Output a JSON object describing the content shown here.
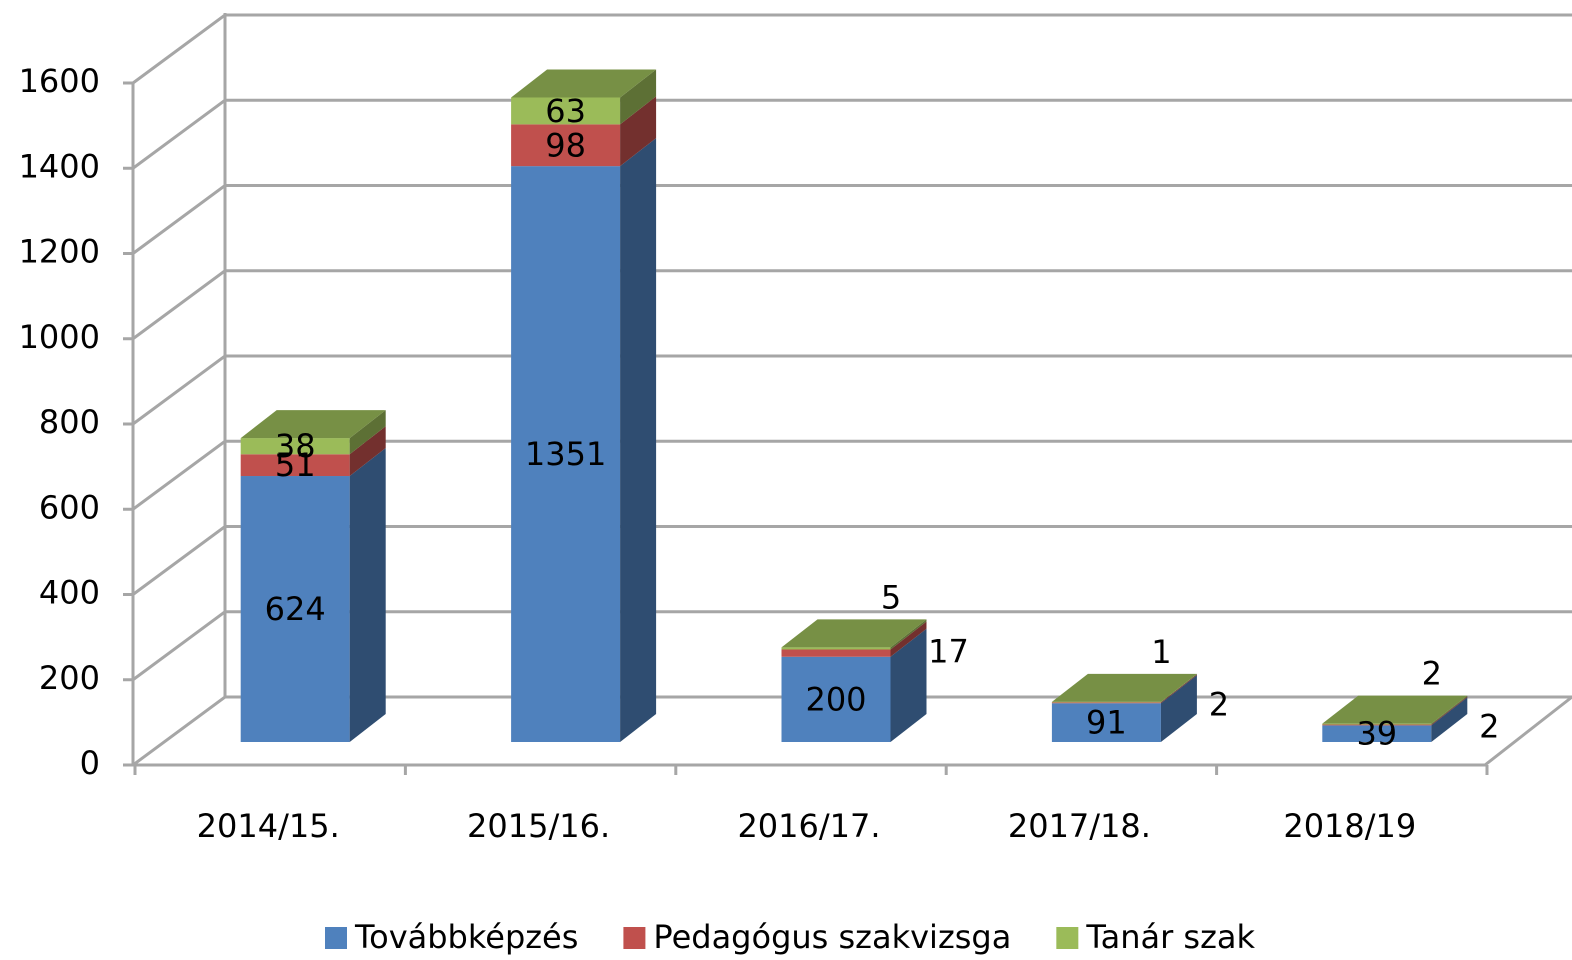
{
  "chart_data": {
    "type": "bar3d_stacked",
    "categories": [
      "2014/15.",
      "2015/16.",
      "2016/17.",
      "2017/18.",
      "2018/19"
    ],
    "series": [
      {
        "name": "Továbbképzés",
        "color": "#4f81bd",
        "values": [
          624,
          1351,
          200,
          91,
          39
        ]
      },
      {
        "name": "Pedagógus szakvizsga",
        "color": "#c0504d",
        "values": [
          51,
          98,
          17,
          2,
          2
        ]
      },
      {
        "name": "Tanár szak",
        "color": "#9bbb59",
        "values": [
          38,
          63,
          5,
          1,
          2
        ]
      }
    ],
    "ylim": [
      0,
      1600
    ],
    "yticks": [
      0,
      200,
      400,
      600,
      800,
      1000,
      1200,
      1400,
      1600
    ],
    "grid": true,
    "legend": "bottom"
  }
}
